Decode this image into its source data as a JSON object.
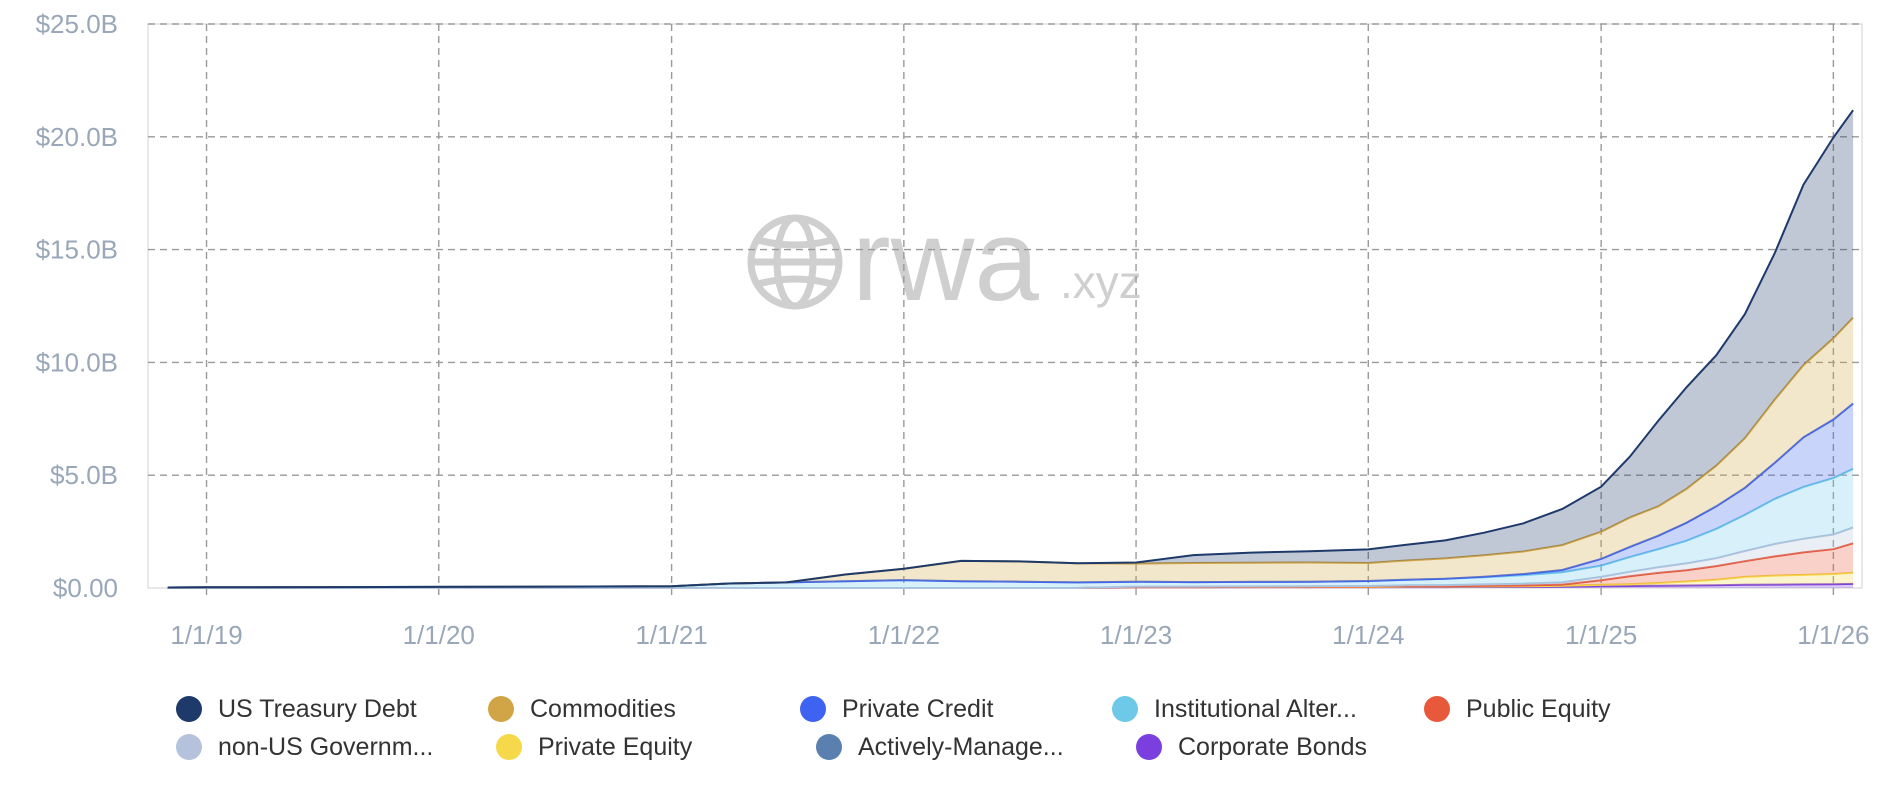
{
  "watermark": {
    "brand": "rwa",
    "suffix": ".xyz"
  },
  "chart_data": {
    "type": "area",
    "stacked": true,
    "title": "",
    "xlabel": "",
    "ylabel": "",
    "ylim": [
      0,
      25
    ],
    "y_unit": "$B",
    "y_ticks": [
      0,
      5,
      10,
      15,
      20,
      25
    ],
    "y_tick_labels": [
      "$0.00",
      "$5.0B",
      "$10.0B",
      "$15.0B",
      "$20.0B",
      "$25.0B"
    ],
    "xlim": [
      "2018-10-01",
      "2026-02-15"
    ],
    "x_ticks": [
      "2019-01-01",
      "2020-01-01",
      "2021-01-01",
      "2022-01-01",
      "2023-01-01",
      "2024-01-01",
      "2025-01-01",
      "2026-01-01"
    ],
    "x_tick_labels": [
      "1/1/19",
      "1/1/20",
      "1/1/21",
      "1/1/22",
      "1/1/23",
      "1/1/24",
      "1/1/25",
      "1/1/26"
    ],
    "grid": true,
    "legend_position": "bottom",
    "x": [
      "2018-11-01",
      "2019-01-01",
      "2019-07-01",
      "2020-01-01",
      "2020-07-01",
      "2021-01-01",
      "2021-04-01",
      "2021-07-01",
      "2021-10-01",
      "2022-01-01",
      "2022-04-01",
      "2022-07-01",
      "2022-10-01",
      "2023-01-01",
      "2023-04-01",
      "2023-07-01",
      "2023-10-01",
      "2024-01-01",
      "2024-03-01",
      "2024-05-01",
      "2024-07-01",
      "2024-09-01",
      "2024-11-01",
      "2025-01-01",
      "2025-02-15",
      "2025-04-01",
      "2025-05-15",
      "2025-07-01",
      "2025-08-15",
      "2025-10-01",
      "2025-11-15",
      "2026-01-01",
      "2026-02-01"
    ],
    "series": [
      {
        "name": "Corporate Bonds",
        "color": "#7b3fe0",
        "values": [
          0,
          0,
          0,
          0,
          0,
          0,
          0,
          0,
          0,
          0,
          0,
          0,
          0,
          0.02,
          0.02,
          0.03,
          0.03,
          0.03,
          0.04,
          0.04,
          0.05,
          0.05,
          0.06,
          0.08,
          0.09,
          0.1,
          0.11,
          0.12,
          0.14,
          0.15,
          0.16,
          0.17,
          0.18
        ]
      },
      {
        "name": "Private Equity",
        "color": "#f5d94a",
        "values": [
          0,
          0,
          0,
          0,
          0,
          0,
          0,
          0,
          0,
          0,
          0,
          0,
          0,
          0.01,
          0.01,
          0.01,
          0.01,
          0.01,
          0.02,
          0.02,
          0.02,
          0.03,
          0.04,
          0.06,
          0.08,
          0.12,
          0.18,
          0.25,
          0.35,
          0.4,
          0.42,
          0.45,
          0.5
        ]
      },
      {
        "name": "Public Equity",
        "color": "#e8583a",
        "values": [
          0,
          0,
          0,
          0,
          0,
          0,
          0,
          0,
          0,
          0,
          0,
          0,
          0,
          0.01,
          0.01,
          0.01,
          0.01,
          0.02,
          0.02,
          0.02,
          0.03,
          0.03,
          0.05,
          0.2,
          0.35,
          0.45,
          0.5,
          0.6,
          0.7,
          0.85,
          1.0,
          1.1,
          1.3
        ]
      },
      {
        "name": "non-US Government Debt",
        "color": "#b4c2dc",
        "values": [
          0,
          0,
          0,
          0,
          0,
          0,
          0,
          0,
          0,
          0,
          0,
          0,
          0,
          0.02,
          0.02,
          0.02,
          0.03,
          0.03,
          0.04,
          0.05,
          0.06,
          0.08,
          0.1,
          0.15,
          0.2,
          0.25,
          0.3,
          0.35,
          0.45,
          0.55,
          0.6,
          0.65,
          0.7
        ]
      },
      {
        "name": "Institutional Alternative Funds",
        "color": "#6ec8e8",
        "values": [
          0.02,
          0.03,
          0.04,
          0.05,
          0.06,
          0.08,
          0.2,
          0.25,
          0.3,
          0.35,
          0.3,
          0.28,
          0.25,
          0.22,
          0.2,
          0.2,
          0.2,
          0.22,
          0.25,
          0.28,
          0.32,
          0.38,
          0.45,
          0.5,
          0.65,
          0.8,
          1.0,
          1.3,
          1.6,
          2.0,
          2.3,
          2.5,
          2.6
        ]
      },
      {
        "name": "Actively-Managed Strategies",
        "color": "#5a80b0",
        "values": [
          0,
          0,
          0,
          0,
          0,
          0,
          0,
          0,
          0,
          0,
          0,
          0,
          0,
          0,
          0,
          0,
          0,
          0,
          0,
          0,
          0,
          0,
          0,
          0,
          0,
          0,
          0,
          0,
          0,
          0,
          0,
          0,
          0
        ]
      },
      {
        "name": "Private Credit",
        "color": "#3d63f0",
        "values": [
          0,
          0,
          0,
          0,
          0,
          0,
          0,
          0,
          0,
          0,
          0,
          0,
          0,
          0,
          0,
          0,
          0,
          0,
          0,
          0,
          0.02,
          0.05,
          0.1,
          0.3,
          0.45,
          0.6,
          0.8,
          1.0,
          1.2,
          1.6,
          2.2,
          2.6,
          2.9
        ]
      },
      {
        "name": "Commodities",
        "color": "#d1a545",
        "values": [
          0,
          0,
          0,
          0,
          0,
          0,
          0,
          0,
          0.3,
          0.5,
          0.9,
          0.9,
          0.85,
          0.8,
          0.85,
          0.85,
          0.85,
          0.8,
          0.85,
          0.9,
          0.95,
          1.0,
          1.1,
          1.2,
          1.3,
          1.3,
          1.5,
          1.8,
          2.2,
          2.8,
          3.2,
          3.6,
          3.8
        ]
      },
      {
        "name": "US Treasury Debt",
        "color": "#1e3a6b",
        "values": [
          0,
          0,
          0,
          0,
          0,
          0,
          0,
          0,
          0,
          0,
          0,
          0,
          0,
          0.05,
          0.35,
          0.45,
          0.5,
          0.6,
          0.7,
          0.8,
          1.0,
          1.25,
          1.6,
          2.0,
          2.7,
          3.8,
          4.5,
          4.9,
          5.5,
          6.5,
          8.0,
          8.9,
          9.2
        ]
      }
    ]
  },
  "legend": {
    "rows": [
      [
        {
          "label": "US Treasury Debt",
          "color": "#1e3a6b"
        },
        {
          "label": "Commodities",
          "color": "#d1a545"
        },
        {
          "label": "Private Credit",
          "color": "#3d63f0"
        },
        {
          "label": "Institutional Alter...",
          "color": "#6ec8e8"
        },
        {
          "label": "Public Equity",
          "color": "#e8583a"
        }
      ],
      [
        {
          "label": "non-US Governm...",
          "color": "#b4c2dc"
        },
        {
          "label": "Private Equity",
          "color": "#f5d94a"
        },
        {
          "label": "Actively-Manage...",
          "color": "#5a80b0"
        },
        {
          "label": "Corporate Bonds",
          "color": "#7b3fe0"
        }
      ]
    ]
  }
}
